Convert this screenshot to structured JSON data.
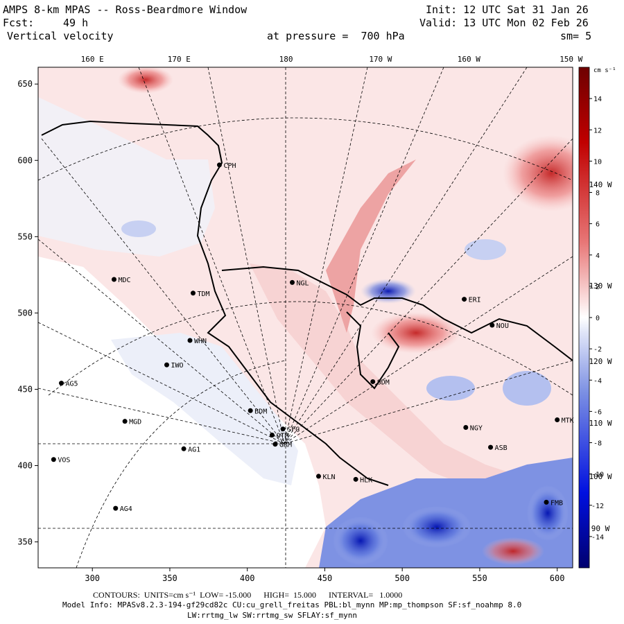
{
  "header": {
    "title": "AMPS 8-km MPAS -- Ross-Beardmore Window",
    "init": "Init: 12 UTC Sat 31 Jan 26",
    "fcst_label": "Fcst:",
    "fcst_hours": "49 h",
    "valid": "Valid: 13 UTC Mon 02 Feb 26",
    "field": "Vertical velocity",
    "pressure": "at pressure =  700 hPa",
    "smoothing": "sm= 5"
  },
  "chart_data": {
    "type": "heatmap",
    "title": "Vertical velocity at pressure = 700 hPa",
    "xlim": [
      265,
      610
    ],
    "ylim": [
      333,
      661
    ],
    "x_ticks": [
      300,
      350,
      400,
      450,
      500,
      550,
      600
    ],
    "y_ticks": [
      350,
      400,
      450,
      500,
      550,
      600,
      650
    ],
    "longitude_labels": [
      {
        "label": "160 E",
        "x": 300
      },
      {
        "label": "170 E",
        "x": 356
      },
      {
        "label": "180",
        "x": 425
      },
      {
        "label": "170 W",
        "x": 486
      },
      {
        "label": "160 W",
        "x": 543
      },
      {
        "label": "150 W",
        "x": 609
      }
    ],
    "side_longitude_labels": [
      "140 W",
      "130 W",
      "120 W",
      "110 W",
      "100 W",
      "90 W"
    ],
    "colorbar": {
      "unit": "cm s⁻¹",
      "labels": [
        "14",
        "12",
        "10",
        "8",
        "6",
        "4",
        "2",
        "0",
        "-2",
        "-4",
        "-6",
        "-8",
        "-10",
        "-12",
        "-14"
      ],
      "vmin": -15,
      "vmax": 15
    },
    "stations": [
      {
        "name": "CPH",
        "x": 382,
        "y": 597
      },
      {
        "name": "MDC",
        "x": 314,
        "y": 522
      },
      {
        "name": "NGL",
        "x": 429,
        "y": 520
      },
      {
        "name": "TDM",
        "x": 365,
        "y": 513
      },
      {
        "name": "ERI",
        "x": 540,
        "y": 509
      },
      {
        "name": "NOU",
        "x": 558,
        "y": 492
      },
      {
        "name": "WHN",
        "x": 363,
        "y": 482
      },
      {
        "name": "IWO",
        "x": 348,
        "y": 466
      },
      {
        "name": "SDM",
        "x": 481,
        "y": 455
      },
      {
        "name": "AG5",
        "x": 280,
        "y": 454
      },
      {
        "name": "BDM",
        "x": 402,
        "y": 436
      },
      {
        "name": "MGD",
        "x": 321,
        "y": 429
      },
      {
        "name": "MTK",
        "x": 600,
        "y": 430
      },
      {
        "name": "SFG",
        "x": 423,
        "y": 424
      },
      {
        "name": "NGY",
        "x": 541,
        "y": 425
      },
      {
        "name": "OTM",
        "x": 416,
        "y": 420
      },
      {
        "name": "GRM",
        "x": 418,
        "y": 414
      },
      {
        "name": "AG1",
        "x": 359,
        "y": 411
      },
      {
        "name": "ASB",
        "x": 557,
        "y": 412
      },
      {
        "name": "VOS",
        "x": 275,
        "y": 404
      },
      {
        "name": "KLN",
        "x": 446,
        "y": 393
      },
      {
        "name": "HLK",
        "x": 470,
        "y": 391
      },
      {
        "name": "AG4",
        "x": 315,
        "y": 372
      },
      {
        "name": "FMB",
        "x": 593,
        "y": 376
      }
    ]
  },
  "footer": {
    "contours": "CONTOURS:  UNITS=cm s⁻¹  LOW= -15.000      HIGH=  15.000      INTERVAL=   1.0000",
    "model_info": "Model Info: MPASv8.2.3-194-gf29cd82c CU:cu_grell_freitas PBL:bl_mynn MP:mp_thompson SF:sf_noahmp 8.0",
    "model_info2": "LW:rrtmg_lw SW:rrtmg_sw SFLAY:sf_mynn"
  },
  "colors": {
    "positive": "#e06a6a",
    "negative": "#3d5ad6",
    "neutral": "#ffffff",
    "land_tint": "#eceff9"
  }
}
